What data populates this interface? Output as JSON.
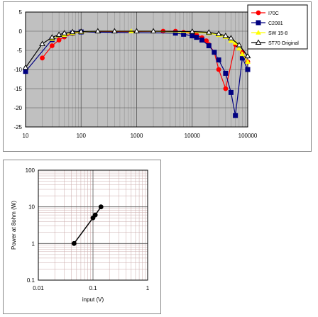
{
  "chart_data": [
    {
      "type": "line",
      "title": "",
      "xlabel": "",
      "ylabel": "",
      "xscale": "log",
      "xlim": [
        10,
        100000
      ],
      "ylim": [
        -25,
        5
      ],
      "yticks": [
        5,
        0,
        -5,
        -10,
        -15,
        -20,
        -25
      ],
      "xtick_labels": [
        "10",
        "100",
        "1000",
        "10000",
        "100000"
      ],
      "ytick_labels": [
        "5",
        "0",
        "-5",
        "-10",
        "-15",
        "-20",
        "-25"
      ],
      "grid": true,
      "legend_position": "top-right",
      "series": [
        {
          "name": "I70C",
          "color": "#ff0000",
          "marker": "circle",
          "x": [
            20,
            30,
            40,
            50,
            70,
            100,
            3000,
            5000,
            7000,
            10000,
            12000,
            15000,
            18000,
            20000,
            25000,
            30000,
            40000,
            60000,
            80000,
            100000
          ],
          "y": [
            -7,
            -3.8,
            -2.3,
            -1.5,
            -0.6,
            -0.2,
            0,
            0,
            -0.3,
            -0.6,
            -1,
            -1.7,
            -2.5,
            -3.5,
            -5.5,
            -10,
            -15,
            -3.5,
            -5.5,
            -8
          ]
        },
        {
          "name": "C2081",
          "color": "#000080",
          "marker": "square",
          "x": [
            10,
            30,
            50,
            70,
            100,
            5000,
            7000,
            10000,
            12000,
            15000,
            20000,
            25000,
            30000,
            40000,
            50000,
            60000,
            80000,
            100000
          ],
          "y": [
            -10.5,
            -2.2,
            -1,
            -0.5,
            -0.2,
            -0.5,
            -0.8,
            -1.2,
            -1.6,
            -2.3,
            -3.8,
            -5.5,
            -7.5,
            -11,
            -16,
            -22,
            -7,
            -10
          ]
        },
        {
          "name": "SW 15-8",
          "color": "#ffff00",
          "marker": "triangle",
          "x": [
            30,
            50,
            70,
            100,
            200,
            800,
            2000,
            20000,
            30000,
            40000,
            50000,
            60000,
            70000,
            80000,
            100000
          ],
          "y": [
            -2,
            -1,
            -0.5,
            -0.2,
            0,
            0,
            0,
            -0.5,
            -1,
            -1.5,
            -2.5,
            -3,
            -4.5,
            -6,
            -8
          ]
        },
        {
          "name": "ST70 Original",
          "color": "#000000",
          "marker": "triangle-open",
          "x": [
            10,
            20,
            30,
            40,
            50,
            70,
            100,
            200,
            400,
            1000,
            2000,
            10000,
            20000,
            30000,
            40000,
            50000,
            70000,
            100000
          ],
          "y": [
            -9.5,
            -3.3,
            -1.6,
            -0.9,
            -0.5,
            -0.2,
            -0.1,
            0,
            0,
            0,
            0,
            -0.1,
            -0.3,
            -0.7,
            -1.2,
            -1.8,
            -3.6,
            -6.5
          ]
        }
      ]
    },
    {
      "type": "line",
      "title": "",
      "xlabel": "input (V)",
      "ylabel": "Power at 8ohm (W)",
      "xscale": "log",
      "yscale": "log",
      "xlim": [
        0.01,
        1
      ],
      "ylim": [
        0.1,
        100
      ],
      "xtick_labels": [
        "0.01",
        "0.1",
        "1"
      ],
      "ytick_labels": [
        "100",
        "10",
        "1",
        "0.1"
      ],
      "grid": true,
      "series": [
        {
          "color": "#000000",
          "marker": "circle",
          "x": [
            0.045,
            0.1,
            0.11,
            0.14
          ],
          "y": [
            1,
            5,
            6,
            10
          ]
        }
      ]
    }
  ]
}
